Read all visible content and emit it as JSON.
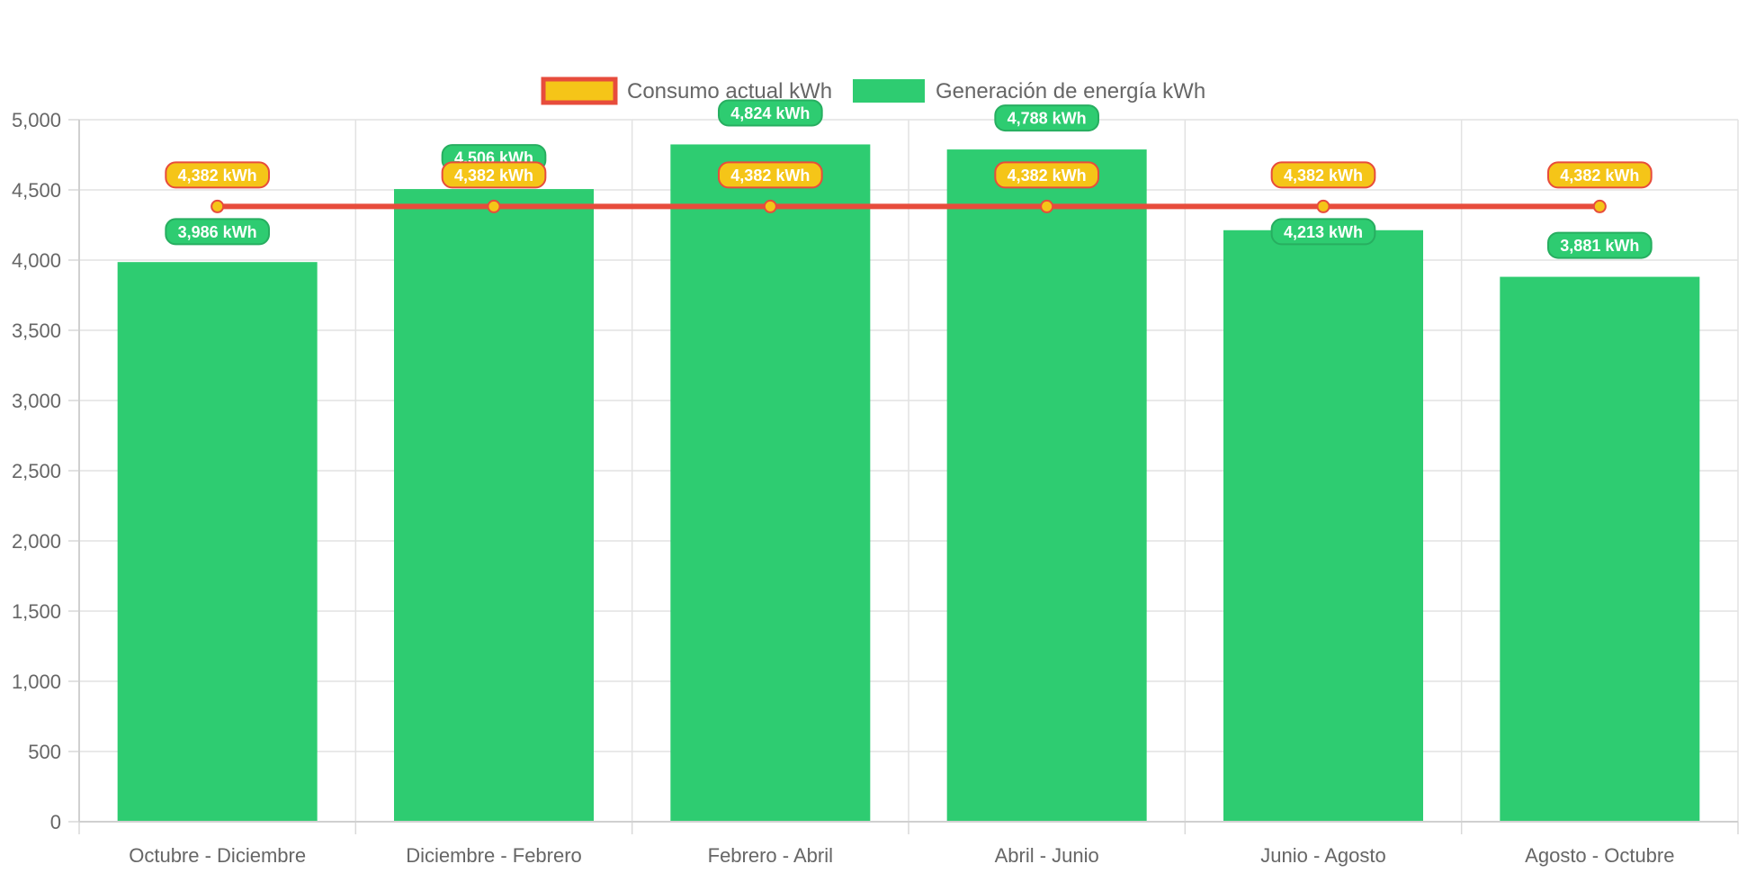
{
  "chart_data": {
    "type": "bar",
    "title": "",
    "xlabel": "",
    "ylabel": "",
    "categories": [
      "Octubre - Diciembre",
      "Diciembre - Febrero",
      "Febrero - Abril",
      "Abril - Junio",
      "Junio - Agosto",
      "Agosto - Octubre"
    ],
    "ylim": [
      0,
      5000
    ],
    "y_ticks": [
      "0",
      "500",
      "1,000",
      "1,500",
      "2,000",
      "2,500",
      "3,000",
      "3,500",
      "4,000",
      "4,500",
      "5,000"
    ],
    "grid": true,
    "legend_position": "top-center",
    "series": [
      {
        "name": "Consumo actual kWh",
        "type": "line",
        "values": [
          4382,
          4382,
          4382,
          4382,
          4382,
          4382
        ],
        "labels": [
          "4,382 kWh",
          "4,382 kWh",
          "4,382 kWh",
          "4,382 kWh",
          "4,382 kWh",
          "4,382 kWh"
        ],
        "line_color": "#e74c3c",
        "point_color": "#f5c518"
      },
      {
        "name": "Generación de energía kWh",
        "type": "bar",
        "values": [
          3986,
          4506,
          4824,
          4788,
          4213,
          3881
        ],
        "labels": [
          "3,986 kWh",
          "4,506 kWh",
          "4,824 kWh",
          "4,788 kWh",
          "4,213 kWh",
          "3,881 kWh"
        ],
        "color": "#2ecc71"
      }
    ]
  }
}
